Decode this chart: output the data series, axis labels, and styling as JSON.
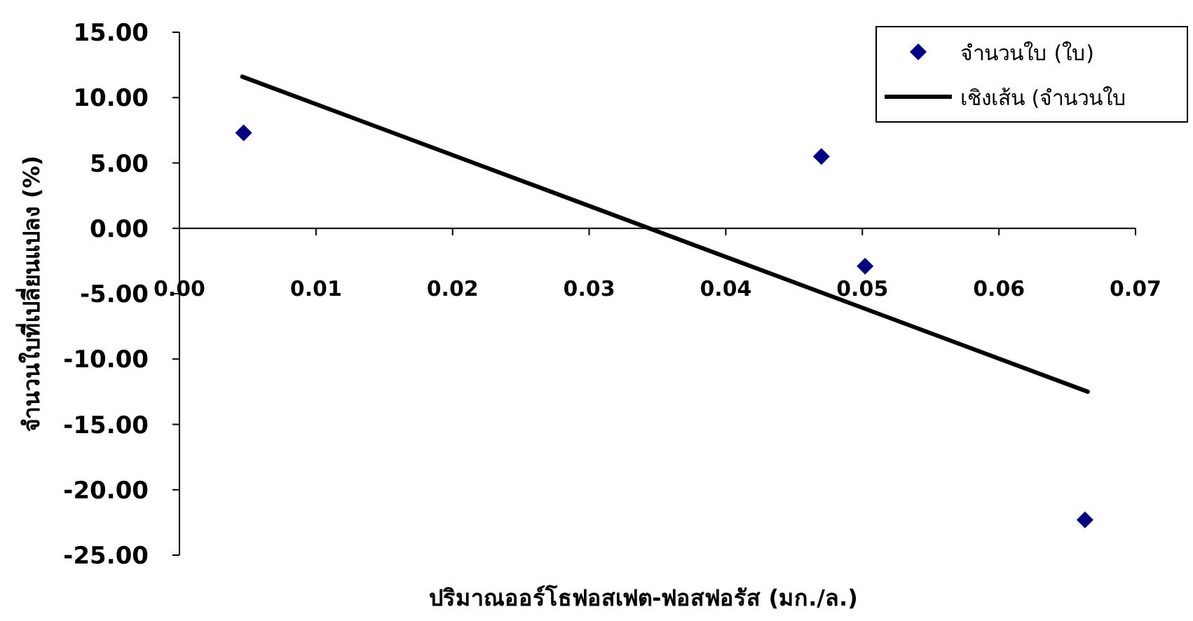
{
  "chart_data": {
    "type": "scatter",
    "xlabel": "ปริมาณออร์โธฟอสเฟต-ฟอสฟอรัส (มก./ล.)",
    "ylabel": "จำนวนใบที่เปลี่ยนแปลง (%)",
    "xlim": [
      0,
      0.07
    ],
    "ylim": [
      -25,
      15
    ],
    "xticks": [
      {
        "value": 0,
        "label": "0.00"
      },
      {
        "value": 0.01,
        "label": "0.01"
      },
      {
        "value": 0.02,
        "label": "0.02"
      },
      {
        "value": 0.03,
        "label": "0.03"
      },
      {
        "value": 0.04,
        "label": "0.04"
      },
      {
        "value": 0.05,
        "label": "0.05"
      },
      {
        "value": 0.06,
        "label": "0.06"
      },
      {
        "value": 0.07,
        "label": "0.07"
      }
    ],
    "yticks": [
      {
        "value": -25,
        "label": "-25.00"
      },
      {
        "value": -20,
        "label": "-20.00"
      },
      {
        "value": -15,
        "label": "-15.00"
      },
      {
        "value": -10,
        "label": "-10.00"
      },
      {
        "value": -5,
        "label": "-5.00"
      },
      {
        "value": 0,
        "label": "0.00"
      },
      {
        "value": 5,
        "label": "5.00"
      },
      {
        "value": 10,
        "label": "10.00"
      },
      {
        "value": 15,
        "label": "15.00"
      }
    ],
    "legend": "top right",
    "series": [
      {
        "name": "จำนวนใบ (ใบ)",
        "marker": "diamond",
        "color": "#000080",
        "x": [
          0.0047,
          0.047,
          0.0502,
          0.0663
        ],
        "values": [
          7.3,
          5.5,
          -2.9,
          -22.3
        ]
      },
      {
        "name": "เชิงเส้น (จำนวนใบ",
        "type": "line",
        "marker": "none",
        "line_style": "solid",
        "color": "#000000",
        "x": [
          0.0046,
          0.0665
        ],
        "values": [
          11.6,
          -12.5
        ]
      }
    ]
  }
}
